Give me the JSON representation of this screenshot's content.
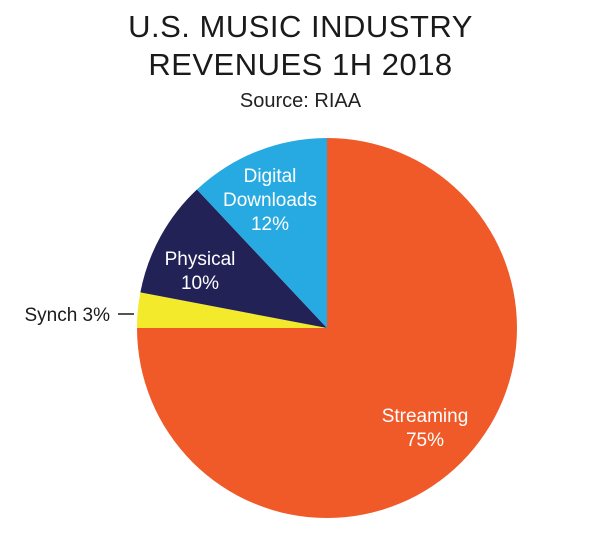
{
  "title_line1": "U.S. MUSIC INDUSTRY",
  "title_line2": "REVENUES 1H 2018",
  "subtitle": "Source: RIAA",
  "chart_data": {
    "type": "pie",
    "title": "U.S. MUSIC INDUSTRY REVENUES 1H 2018",
    "subtitle": "Source: RIAA",
    "slices": [
      {
        "label_lines": [
          "Streaming"
        ],
        "value": 75,
        "value_label": "75%",
        "color": "#f05a28",
        "text_color": "#ffffff"
      },
      {
        "label_lines": [
          "Synch 3%"
        ],
        "value": 3,
        "value_label": "",
        "color": "#f2ea2a",
        "text_color": "#1a1a1a"
      },
      {
        "label_lines": [
          "Physical"
        ],
        "value": 10,
        "value_label": "10%",
        "color": "#222256",
        "text_color": "#ffffff"
      },
      {
        "label_lines": [
          "Digital",
          "Downloads"
        ],
        "value": 12,
        "value_label": "12%",
        "color": "#27aae1",
        "text_color": "#ffffff"
      }
    ]
  }
}
